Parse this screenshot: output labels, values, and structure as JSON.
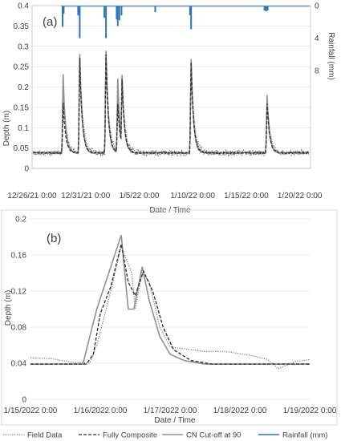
{
  "chart_data": [
    {
      "type": "line",
      "panel_label": "(a)",
      "xlabel": "Date / Time",
      "ylabel": "Depth (m)",
      "y2label": "Rainfall (mm)",
      "xlim": [
        0,
        26
      ],
      "x_tick_positions": [
        0,
        5,
        10,
        15,
        20,
        25
      ],
      "x_tick_labels": [
        "12/26/21 0:00",
        "12/31/21 0:00",
        "1/5/22 0:00",
        "1/10/22 0:00",
        "1/15/22 0:00",
        "1/20/22 0:00"
      ],
      "ylim": [
        0,
        0.4
      ],
      "y_ticks": [
        0,
        0.05,
        0.1,
        0.15,
        0.2,
        0.25,
        0.3,
        0.35,
        0.4
      ],
      "y_tick_labels": [
        "0",
        "0.05",
        "0.1",
        "0.15",
        "0.2",
        "0.25",
        "0.3",
        "0.35",
        "0.4"
      ],
      "y2lim": [
        0,
        20
      ],
      "y2_ticks": [
        0,
        4,
        8
      ],
      "y2_tick_labels": [
        "0",
        "4",
        "8"
      ],
      "y2_inverted": true,
      "baseline": 0.038,
      "peaks": [
        {
          "x": 2.9,
          "field": 0.2,
          "composite": 0.16,
          "cn90": 0.23
        },
        {
          "x": 4.45,
          "field": 0.27,
          "composite": 0.27,
          "cn90": 0.28
        },
        {
          "x": 6.9,
          "field": 0.27,
          "composite": 0.28,
          "cn90": 0.29
        },
        {
          "x": 8.0,
          "field": 0.15,
          "composite": 0.16,
          "cn90": 0.22
        },
        {
          "x": 8.4,
          "field": 0.22,
          "composite": 0.22,
          "cn90": 0.23
        },
        {
          "x": 14.85,
          "field": 0.26,
          "composite": 0.26,
          "cn90": 0.27
        },
        {
          "x": 21.95,
          "field": 0.17,
          "composite": 0.16,
          "cn90": 0.18
        }
      ],
      "rainfall": [
        {
          "x": 2.85,
          "mm": 2.6
        },
        {
          "x": 2.95,
          "mm": 1.0
        },
        {
          "x": 4.3,
          "mm": 1.2
        },
        {
          "x": 4.45,
          "mm": 4.0
        },
        {
          "x": 6.75,
          "mm": 1.5
        },
        {
          "x": 6.9,
          "mm": 4.0
        },
        {
          "x": 7.9,
          "mm": 1.7
        },
        {
          "x": 8.0,
          "mm": 2.5
        },
        {
          "x": 8.15,
          "mm": 1.8
        },
        {
          "x": 8.35,
          "mm": 1.2
        },
        {
          "x": 11.5,
          "mm": 0.8
        },
        {
          "x": 14.75,
          "mm": 1.2
        },
        {
          "x": 14.85,
          "mm": 2.9
        },
        {
          "x": 21.7,
          "mm": 0.6
        },
        {
          "x": 21.85,
          "mm": 0.7
        },
        {
          "x": 22.0,
          "mm": 0.6
        }
      ]
    },
    {
      "type": "line",
      "panel_label": "(b)",
      "xlabel": "Date / Time",
      "ylabel": "Depth (m)",
      "xlim": [
        0,
        4
      ],
      "x_tick_positions": [
        0,
        1,
        2,
        3,
        4
      ],
      "x_tick_labels": [
        "1/15/2022 0:00",
        "1/16/2022 0:00",
        "1/17/2022 0:00",
        "1/18/2022 0:00",
        "1/19/2022 0:00"
      ],
      "ylim": [
        0,
        0.2
      ],
      "y_ticks": [
        0,
        0.04,
        0.08,
        0.12,
        0.16,
        0.2
      ],
      "y_tick_labels": [
        "0",
        "0.04",
        "0.08",
        "0.12",
        "0.16",
        "0.2"
      ],
      "series": [
        {
          "name": "Field Data",
          "x": [
            0,
            0.3,
            0.6,
            0.85,
            0.95,
            1.05,
            1.15,
            1.3,
            1.45,
            1.5,
            1.6,
            1.7,
            1.85,
            2.0,
            2.2,
            2.5,
            2.8,
            3.2,
            3.4,
            3.55,
            3.8,
            4.0
          ],
          "values": [
            0.046,
            0.045,
            0.041,
            0.04,
            0.06,
            0.09,
            0.12,
            0.17,
            0.14,
            0.1,
            0.14,
            0.13,
            0.08,
            0.058,
            0.056,
            0.053,
            0.053,
            0.048,
            0.044,
            0.034,
            0.042,
            0.044
          ]
        },
        {
          "name": "Fully Composite",
          "x": [
            0,
            0.8,
            0.9,
            1.0,
            1.15,
            1.3,
            1.4,
            1.5,
            1.62,
            1.75,
            1.9,
            2.05,
            2.3,
            2.6,
            4.0
          ],
          "values": [
            0.039,
            0.039,
            0.05,
            0.095,
            0.125,
            0.172,
            0.13,
            0.115,
            0.142,
            0.12,
            0.08,
            0.055,
            0.043,
            0.039,
            0.039
          ]
        },
        {
          "name": "CN Cut-off at 90",
          "x": [
            0,
            0.75,
            0.85,
            0.95,
            1.1,
            1.3,
            1.4,
            1.48,
            1.6,
            1.7,
            1.85,
            2.0,
            2.2,
            2.5,
            4.0
          ],
          "values": [
            0.039,
            0.039,
            0.07,
            0.1,
            0.135,
            0.182,
            0.1,
            0.1,
            0.147,
            0.11,
            0.07,
            0.05,
            0.043,
            0.039,
            0.039
          ]
        }
      ]
    }
  ],
  "legend": {
    "items": [
      {
        "name": "Field Data",
        "color": "#777777",
        "style": "dotted"
      },
      {
        "name": "Fully Composite",
        "color": "#333333",
        "style": "dashed"
      },
      {
        "name": "CN Cut-off at 90",
        "color": "#909090",
        "style": "solid"
      },
      {
        "name": "Rainfall (mm)",
        "color": "#2e75b6",
        "style": "solid"
      }
    ]
  },
  "colors": {
    "rainfall": "#2e75b6",
    "field": "#777777",
    "composite": "#333333",
    "cn90": "#909090",
    "gridline": "#d9d9d9"
  }
}
